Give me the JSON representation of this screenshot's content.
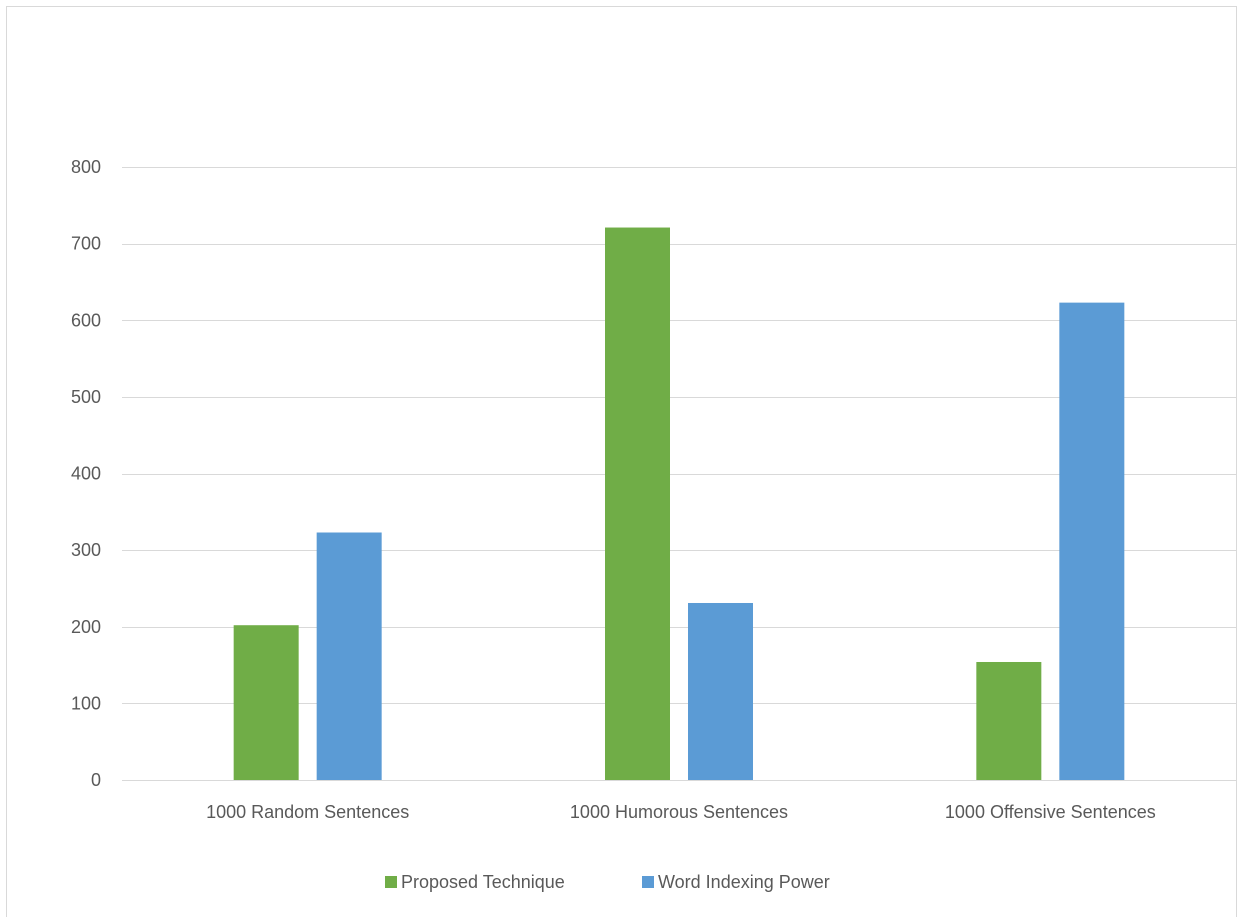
{
  "chart_data": {
    "type": "bar",
    "title": "",
    "xlabel": "",
    "ylabel": "",
    "categories": [
      "1000 Random Sentences",
      "1000 Humorous Sentences",
      "1000 Offensive Sentences"
    ],
    "series": [
      {
        "name": "Proposed Technique",
        "color": "#70ad47",
        "values": [
          202,
          721,
          154
        ]
      },
      {
        "name": "Word Indexing Power",
        "color": "#5b9bd5",
        "values": [
          323,
          231,
          623
        ]
      }
    ],
    "ylim": [
      0,
      800
    ],
    "yticks": [
      0,
      100,
      200,
      300,
      400,
      500,
      600,
      700,
      800
    ],
    "grid": true,
    "legend_position": "bottom"
  }
}
